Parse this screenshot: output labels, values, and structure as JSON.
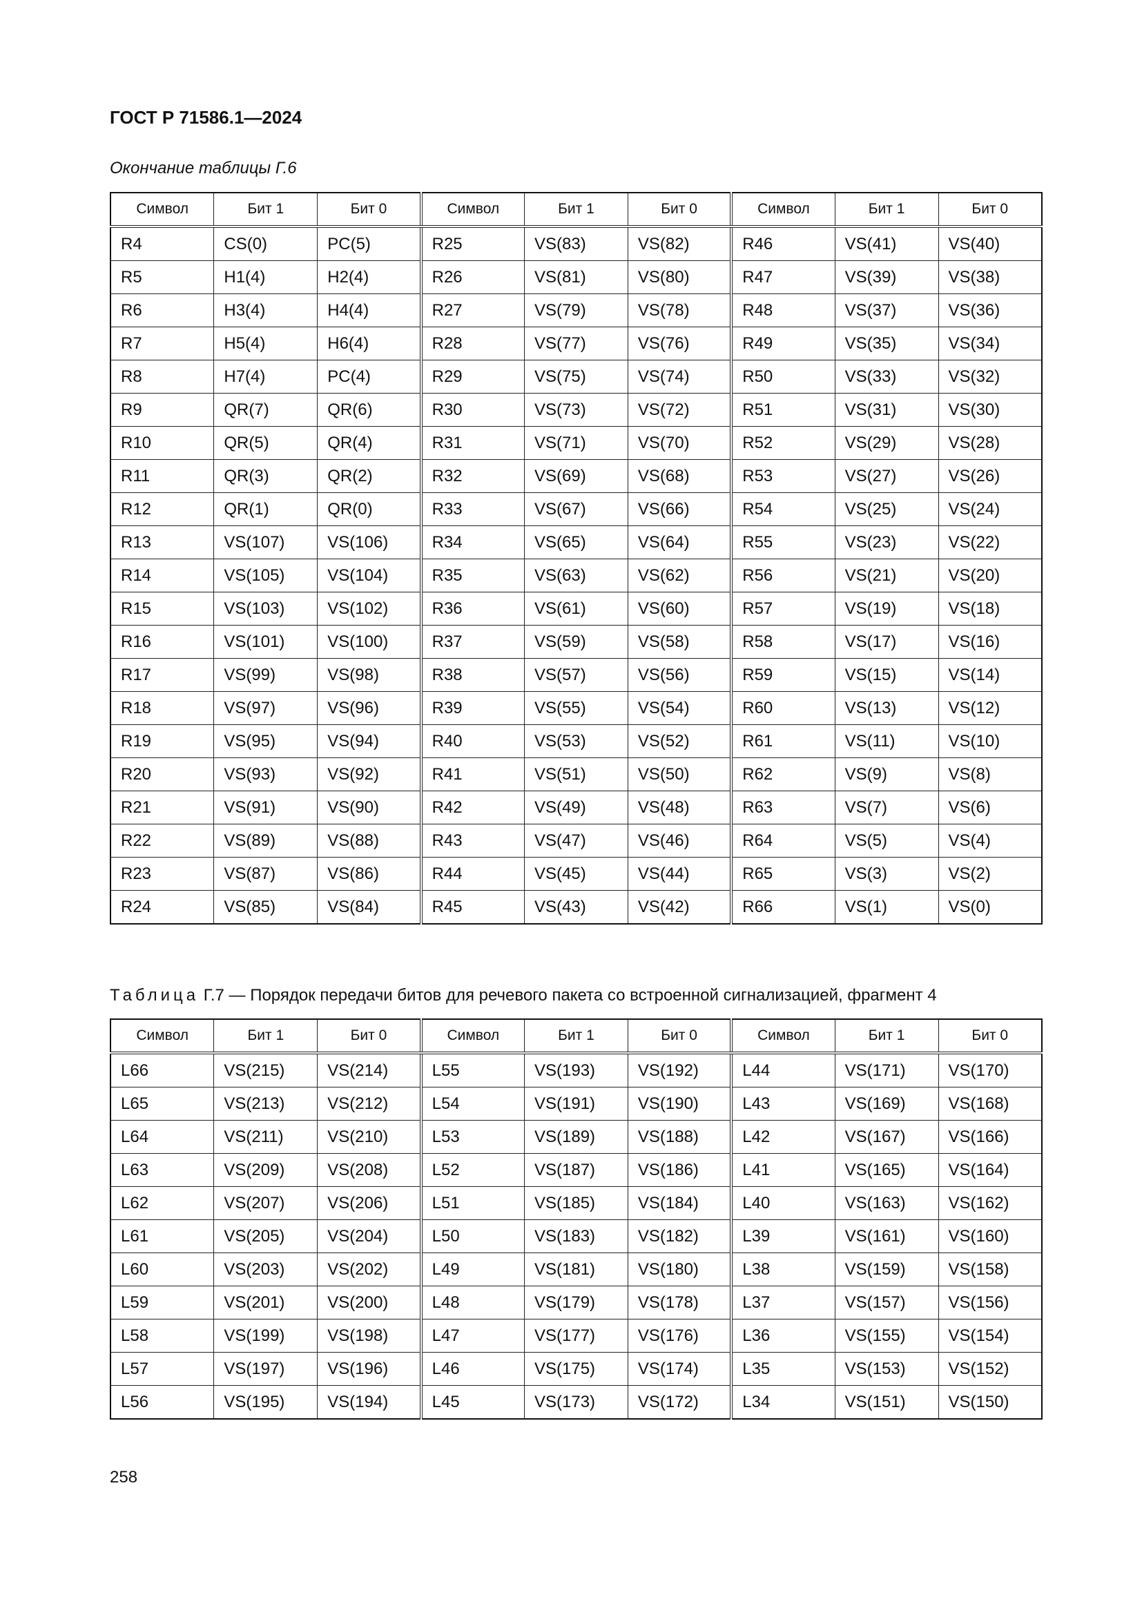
{
  "header": {
    "doc_title": "ГОСТ Р 71586.1—2024"
  },
  "table1": {
    "caption": "Окончание таблицы Г.6",
    "columns": [
      "Символ",
      "Бит 1",
      "Бит 0",
      "Символ",
      "Бит 1",
      "Бит 0",
      "Символ",
      "Бит 1",
      "Бит 0"
    ],
    "rows": [
      [
        "R4",
        "CS(0)",
        "PC(5)",
        "R25",
        "VS(83)",
        "VS(82)",
        "R46",
        "VS(41)",
        "VS(40)"
      ],
      [
        "R5",
        "H1(4)",
        "H2(4)",
        "R26",
        "VS(81)",
        "VS(80)",
        "R47",
        "VS(39)",
        "VS(38)"
      ],
      [
        "R6",
        "H3(4)",
        "H4(4)",
        "R27",
        "VS(79)",
        "VS(78)",
        "R48",
        "VS(37)",
        "VS(36)"
      ],
      [
        "R7",
        "H5(4)",
        "H6(4)",
        "R28",
        "VS(77)",
        "VS(76)",
        "R49",
        "VS(35)",
        "VS(34)"
      ],
      [
        "R8",
        "H7(4)",
        "PC(4)",
        "R29",
        "VS(75)",
        "VS(74)",
        "R50",
        "VS(33)",
        "VS(32)"
      ],
      [
        "R9",
        "QR(7)",
        "QR(6)",
        "R30",
        "VS(73)",
        "VS(72)",
        "R51",
        "VS(31)",
        "VS(30)"
      ],
      [
        "R10",
        "QR(5)",
        "QR(4)",
        "R31",
        "VS(71)",
        "VS(70)",
        "R52",
        "VS(29)",
        "VS(28)"
      ],
      [
        "R11",
        "QR(3)",
        "QR(2)",
        "R32",
        "VS(69)",
        "VS(68)",
        "R53",
        "VS(27)",
        "VS(26)"
      ],
      [
        "R12",
        "QR(1)",
        "QR(0)",
        "R33",
        "VS(67)",
        "VS(66)",
        "R54",
        "VS(25)",
        "VS(24)"
      ],
      [
        "R13",
        "VS(107)",
        "VS(106)",
        "R34",
        "VS(65)",
        "VS(64)",
        "R55",
        "VS(23)",
        "VS(22)"
      ],
      [
        "R14",
        "VS(105)",
        "VS(104)",
        "R35",
        "VS(63)",
        "VS(62)",
        "R56",
        "VS(21)",
        "VS(20)"
      ],
      [
        "R15",
        "VS(103)",
        "VS(102)",
        "R36",
        "VS(61)",
        "VS(60)",
        "R57",
        "VS(19)",
        "VS(18)"
      ],
      [
        "R16",
        "VS(101)",
        "VS(100)",
        "R37",
        "VS(59)",
        "VS(58)",
        "R58",
        "VS(17)",
        "VS(16)"
      ],
      [
        "R17",
        "VS(99)",
        "VS(98)",
        "R38",
        "VS(57)",
        "VS(56)",
        "R59",
        "VS(15)",
        "VS(14)"
      ],
      [
        "R18",
        "VS(97)",
        "VS(96)",
        "R39",
        "VS(55)",
        "VS(54)",
        "R60",
        "VS(13)",
        "VS(12)"
      ],
      [
        "R19",
        "VS(95)",
        "VS(94)",
        "R40",
        "VS(53)",
        "VS(52)",
        "R61",
        "VS(11)",
        "VS(10)"
      ],
      [
        "R20",
        "VS(93)",
        "VS(92)",
        "R41",
        "VS(51)",
        "VS(50)",
        "R62",
        "VS(9)",
        "VS(8)"
      ],
      [
        "R21",
        "VS(91)",
        "VS(90)",
        "R42",
        "VS(49)",
        "VS(48)",
        "R63",
        "VS(7)",
        "VS(6)"
      ],
      [
        "R22",
        "VS(89)",
        "VS(88)",
        "R43",
        "VS(47)",
        "VS(46)",
        "R64",
        "VS(5)",
        "VS(4)"
      ],
      [
        "R23",
        "VS(87)",
        "VS(86)",
        "R44",
        "VS(45)",
        "VS(44)",
        "R65",
        "VS(3)",
        "VS(2)"
      ],
      [
        "R24",
        "VS(85)",
        "VS(84)",
        "R45",
        "VS(43)",
        "VS(42)",
        "R66",
        "VS(1)",
        "VS(0)"
      ]
    ]
  },
  "table2": {
    "caption_prefix": "Таблица",
    "caption_text": "Г.7 — Порядок передачи битов для речевого пакета со встроенной сигнализацией, фрагмент 4",
    "columns": [
      "Символ",
      "Бит 1",
      "Бит 0",
      "Символ",
      "Бит 1",
      "Бит 0",
      "Символ",
      "Бит 1",
      "Бит 0"
    ],
    "rows": [
      [
        "L66",
        "VS(215)",
        "VS(214)",
        "L55",
        "VS(193)",
        "VS(192)",
        "L44",
        "VS(171)",
        "VS(170)"
      ],
      [
        "L65",
        "VS(213)",
        "VS(212)",
        "L54",
        "VS(191)",
        "VS(190)",
        "L43",
        "VS(169)",
        "VS(168)"
      ],
      [
        "L64",
        "VS(211)",
        "VS(210)",
        "L53",
        "VS(189)",
        "VS(188)",
        "L42",
        "VS(167)",
        "VS(166)"
      ],
      [
        "L63",
        "VS(209)",
        "VS(208)",
        "L52",
        "VS(187)",
        "VS(186)",
        "L41",
        "VS(165)",
        "VS(164)"
      ],
      [
        "L62",
        "VS(207)",
        "VS(206)",
        "L51",
        "VS(185)",
        "VS(184)",
        "L40",
        "VS(163)",
        "VS(162)"
      ],
      [
        "L61",
        "VS(205)",
        "VS(204)",
        "L50",
        "VS(183)",
        "VS(182)",
        "L39",
        "VS(161)",
        "VS(160)"
      ],
      [
        "L60",
        "VS(203)",
        "VS(202)",
        "L49",
        "VS(181)",
        "VS(180)",
        "L38",
        "VS(159)",
        "VS(158)"
      ],
      [
        "L59",
        "VS(201)",
        "VS(200)",
        "L48",
        "VS(179)",
        "VS(178)",
        "L37",
        "VS(157)",
        "VS(156)"
      ],
      [
        "L58",
        "VS(199)",
        "VS(198)",
        "L47",
        "VS(177)",
        "VS(176)",
        "L36",
        "VS(155)",
        "VS(154)"
      ],
      [
        "L57",
        "VS(197)",
        "VS(196)",
        "L46",
        "VS(175)",
        "VS(174)",
        "L35",
        "VS(153)",
        "VS(152)"
      ],
      [
        "L56",
        "VS(195)",
        "VS(194)",
        "L45",
        "VS(173)",
        "VS(172)",
        "L34",
        "VS(151)",
        "VS(150)"
      ]
    ]
  },
  "footer": {
    "page_number": "258"
  }
}
